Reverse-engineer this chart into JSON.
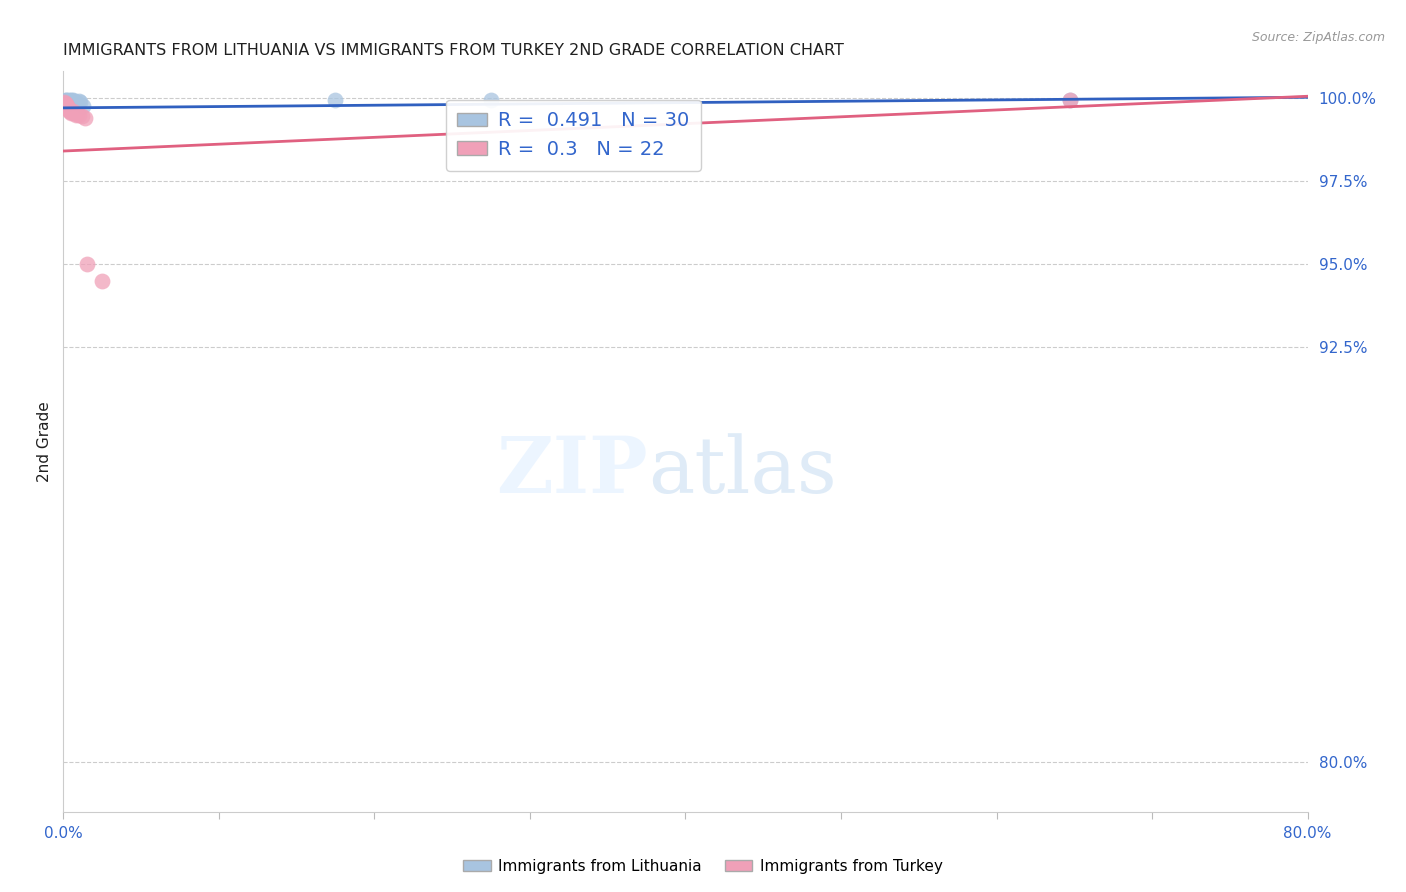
{
  "title": "IMMIGRANTS FROM LITHUANIA VS IMMIGRANTS FROM TURKEY 2ND GRADE CORRELATION CHART",
  "source": "Source: ZipAtlas.com",
  "ylabel": "2nd Grade",
  "ytick_labels": [
    "100.0%",
    "97.5%",
    "95.0%",
    "92.5%",
    "80.0%"
  ],
  "ytick_values": [
    1.0,
    0.975,
    0.95,
    0.925,
    0.8
  ],
  "xlim": [
    0.0,
    0.8
  ],
  "ylim": [
    0.785,
    1.008
  ],
  "r_lithuania": 0.491,
  "n_lithuania": 30,
  "r_turkey": 0.3,
  "n_turkey": 22,
  "lithuania_color": "#a8c4e0",
  "turkey_color": "#f0a0b8",
  "lithuania_line_color": "#3060c0",
  "turkey_line_color": "#e06080",
  "legend_label_lithuania": "Immigrants from Lithuania",
  "legend_label_turkey": "Immigrants from Turkey",
  "background_color": "#ffffff",
  "grid_color": "#cccccc",
  "title_color": "#202020",
  "lith_x": [
    0.0005,
    0.001,
    0.0015,
    0.0018,
    0.002,
    0.002,
    0.0022,
    0.0025,
    0.003,
    0.003,
    0.0032,
    0.0035,
    0.004,
    0.004,
    0.0045,
    0.005,
    0.005,
    0.006,
    0.006,
    0.007,
    0.007,
    0.008,
    0.009,
    0.01,
    0.011,
    0.013,
    0.175,
    0.275,
    0.003,
    0.647
  ],
  "lith_y": [
    0.9985,
    0.999,
    0.9995,
    0.9992,
    0.9988,
    0.9993,
    0.999,
    0.9987,
    0.9985,
    0.9992,
    0.9988,
    0.9993,
    0.999,
    0.9987,
    0.9984,
    0.9993,
    0.999,
    0.9987,
    0.9993,
    0.999,
    0.9987,
    0.9988,
    0.9985,
    0.999,
    0.9988,
    0.9975,
    0.9995,
    0.9993,
    0.9985,
    0.9995
  ],
  "turk_x": [
    0.0005,
    0.001,
    0.0015,
    0.002,
    0.002,
    0.0025,
    0.003,
    0.003,
    0.004,
    0.004,
    0.005,
    0.005,
    0.006,
    0.007,
    0.008,
    0.009,
    0.01,
    0.012,
    0.014,
    0.015,
    0.025,
    0.647
  ],
  "turk_y": [
    0.9988,
    0.9985,
    0.9982,
    0.9978,
    0.998,
    0.9975,
    0.997,
    0.9968,
    0.996,
    0.9965,
    0.9958,
    0.9955,
    0.996,
    0.9955,
    0.9948,
    0.9952,
    0.995,
    0.9945,
    0.994,
    0.95,
    0.945,
    0.9995
  ],
  "blue_line_x": [
    0.0,
    0.8
  ],
  "blue_line_y": [
    0.997,
    1.0002
  ],
  "pink_line_x": [
    0.0,
    0.8
  ],
  "pink_line_y": [
    0.984,
    1.0005
  ]
}
